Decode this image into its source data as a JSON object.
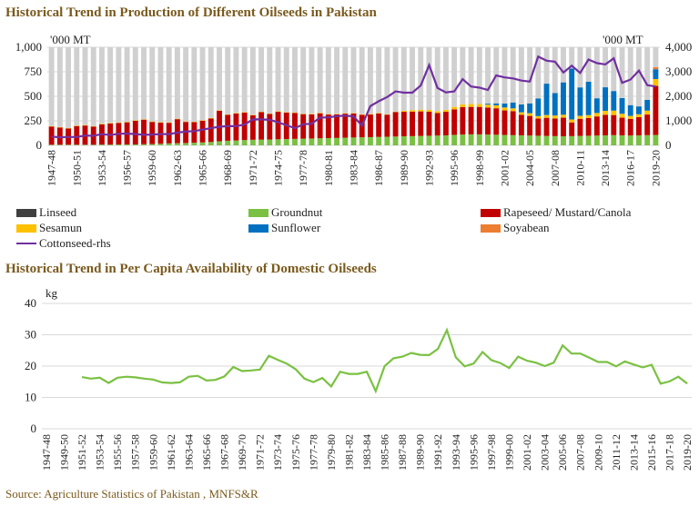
{
  "chart1": {
    "title": "Historical Trend in Production of Different Oilseeds in Pakistan",
    "unit_left": "'000 MT",
    "unit_right": "'000 MT",
    "years": [
      "1947-48",
      "1948-49",
      "1949-50",
      "1950-51",
      "1951-52",
      "1952-53",
      "1953-54",
      "1954-55",
      "1955-56",
      "1956-57",
      "1957-58",
      "1958-59",
      "1959-60",
      "1960-61",
      "1961-62",
      "1962-63",
      "1963-64",
      "1964-65",
      "1965-66",
      "1966-67",
      "1967-68",
      "1968-69",
      "1969-70",
      "1970-71",
      "1971-72",
      "1972-73",
      "1973-74",
      "1974-75",
      "1975-76",
      "1976-77",
      "1977-78",
      "1978-79",
      "1979-80",
      "1980-81",
      "1981-82",
      "1982-83",
      "1983-84",
      "1984-85",
      "1985-86",
      "1986-87",
      "1987-88",
      "1988-89",
      "1989-90",
      "1990-91",
      "1991-92",
      "1992-93",
      "1993-94",
      "1994-95",
      "1995-96",
      "1996-97",
      "1997-98",
      "1998-99",
      "1999-00",
      "2000-01",
      "2001-02",
      "2002-03",
      "2003-04",
      "2004-05",
      "2005-06",
      "2006-07",
      "2007-08",
      "2008-09",
      "2009-10",
      "2010-11",
      "2011-12",
      "2012-13",
      "2013-14",
      "2014-15",
      "2015-16",
      "2016-17",
      "2017-18",
      "2018-19",
      "2019-20"
    ],
    "tick_labels": [
      "1947-48",
      "1950-51",
      "1953-54",
      "1956-57",
      "1959-60",
      "1962-63",
      "1965-66",
      "1968-69",
      "1971-72",
      "1974-75",
      "1977-78",
      "1980-81",
      "1983-84",
      "1986-87",
      "1989-90",
      "1992-93",
      "1995-96",
      "1998-99",
      "2001-02",
      "2004-05",
      "2007-08",
      "2010-11",
      "2013-14",
      "2016-17",
      "2019-20"
    ],
    "y_left_ticks": [
      "0",
      "250",
      "500",
      "750",
      "1,000"
    ],
    "y_right_ticks": [
      "0",
      "1,000",
      "2,000",
      "3,000",
      "4,000"
    ],
    "legend": [
      "Linseed",
      "Groundnut",
      "Rapeseed/ Mustard/Canola",
      "Sesamun",
      "Sunflower",
      "Soyabean",
      "Cottonseed-rhs"
    ]
  },
  "chart2": {
    "title": "Historical Trend in Per Capita Availability of Domestic Oilseeds",
    "unit": "kg",
    "y_ticks": [
      "0",
      "10",
      "20",
      "30",
      "40"
    ],
    "tick_labels": [
      "1947-48",
      "1949-50",
      "1951-52",
      "1953-54",
      "1955-56",
      "1957-58",
      "1959-60",
      "1961-62",
      "1963-64",
      "1965-66",
      "1967-68",
      "1969-70",
      "1971-72",
      "1973-74",
      "1975-76",
      "1977-78",
      "1979-80",
      "1981-82",
      "1983-84",
      "1985-86",
      "1987-88",
      "1989-90",
      "1991-92",
      "1993-94",
      "1995-96",
      "1997-98",
      "1999-00",
      "2001-02",
      "2003-04",
      "2005-06",
      "2007-08",
      "2009-10",
      "2011-12",
      "2013-14",
      "2015-16",
      "2017-18",
      "2019-20"
    ]
  },
  "source": "Source: Agriculture Statistics of Pakistan , MNFS&R",
  "chart_data": [
    {
      "type": "bar",
      "title": "Historical Trend in Production of Different Oilseeds in Pakistan",
      "stacked": true,
      "ylabel": "'000 MT",
      "ylabel_right": "'000 MT",
      "ylim": [
        0,
        1000
      ],
      "ylim_right": [
        0,
        4000
      ],
      "grid": true,
      "legend_position": "bottom",
      "categories": [
        "1947-48",
        "1948-49",
        "1949-50",
        "1950-51",
        "1951-52",
        "1952-53",
        "1953-54",
        "1954-55",
        "1955-56",
        "1956-57",
        "1957-58",
        "1958-59",
        "1959-60",
        "1960-61",
        "1961-62",
        "1962-63",
        "1963-64",
        "1964-65",
        "1965-66",
        "1966-67",
        "1967-68",
        "1968-69",
        "1969-70",
        "1970-71",
        "1971-72",
        "1972-73",
        "1973-74",
        "1974-75",
        "1975-76",
        "1976-77",
        "1977-78",
        "1978-79",
        "1979-80",
        "1980-81",
        "1981-82",
        "1982-83",
        "1983-84",
        "1984-85",
        "1985-86",
        "1986-87",
        "1987-88",
        "1988-89",
        "1989-90",
        "1990-91",
        "1991-92",
        "1992-93",
        "1993-94",
        "1994-95",
        "1995-96",
        "1996-97",
        "1997-98",
        "1998-99",
        "1999-00",
        "2000-01",
        "2001-02",
        "2002-03",
        "2003-04",
        "2004-05",
        "2005-06",
        "2006-07",
        "2007-08",
        "2008-09",
        "2009-10",
        "2010-11",
        "2011-12",
        "2012-13",
        "2013-14",
        "2014-15",
        "2015-16",
        "2016-17",
        "2017-18",
        "2018-19",
        "2019-20"
      ],
      "series": [
        {
          "name": "Linseed",
          "color": "#404040",
          "values": [
            2,
            2,
            2,
            2,
            2,
            2,
            2,
            2,
            2,
            2,
            2,
            2,
            2,
            2,
            2,
            2,
            2,
            2,
            2,
            2,
            2,
            2,
            2,
            2,
            2,
            2,
            2,
            2,
            2,
            2,
            2,
            2,
            2,
            2,
            2,
            2,
            2,
            2,
            2,
            2,
            2,
            2,
            2,
            2,
            2,
            2,
            2,
            2,
            2,
            2,
            2,
            2,
            2,
            2,
            2,
            2,
            2,
            2,
            2,
            2,
            2,
            2,
            2,
            2,
            2,
            2,
            2,
            2,
            2,
            2,
            2,
            2,
            2
          ]
        },
        {
          "name": "Groundnut",
          "color": "#7ac143",
          "values": [
            5,
            5,
            5,
            5,
            5,
            5,
            6,
            6,
            7,
            8,
            8,
            10,
            12,
            14,
            18,
            20,
            22,
            25,
            28,
            32,
            40,
            45,
            48,
            52,
            55,
            56,
            58,
            60,
            62,
            64,
            66,
            68,
            70,
            72,
            74,
            76,
            78,
            80,
            82,
            84,
            86,
            88,
            90,
            92,
            94,
            96,
            98,
            100,
            105,
            108,
            110,
            110,
            108,
            106,
            104,
            102,
            100,
            98,
            96,
            94,
            92,
            90,
            92,
            94,
            96,
            98,
            100,
            102,
            100,
            98,
            100,
            102,
            104
          ]
        },
        {
          "name": "Rapeseed/ Mustard/Canola",
          "color": "#c00000",
          "values": [
            185,
            175,
            165,
            190,
            195,
            185,
            205,
            215,
            220,
            225,
            240,
            250,
            225,
            215,
            210,
            245,
            215,
            210,
            220,
            240,
            310,
            265,
            275,
            280,
            250,
            280,
            260,
            280,
            270,
            265,
            250,
            245,
            255,
            240,
            240,
            245,
            245,
            230,
            230,
            240,
            225,
            250,
            250,
            250,
            250,
            245,
            230,
            240,
            260,
            280,
            280,
            280,
            275,
            270,
            250,
            245,
            210,
            200,
            175,
            185,
            180,
            190,
            140,
            175,
            180,
            195,
            210,
            205,
            180,
            170,
            185,
            210,
            500
          ]
        },
        {
          "name": "Sesamun",
          "color": "#ffc000",
          "values": [
            5,
            5,
            5,
            5,
            5,
            5,
            5,
            5,
            5,
            5,
            5,
            5,
            5,
            5,
            5,
            5,
            5,
            5,
            5,
            5,
            5,
            5,
            5,
            5,
            5,
            5,
            5,
            5,
            5,
            5,
            5,
            5,
            5,
            5,
            5,
            5,
            5,
            5,
            5,
            5,
            5,
            5,
            10,
            15,
            18,
            18,
            18,
            20,
            25,
            28,
            30,
            30,
            30,
            30,
            30,
            28,
            25,
            28,
            25,
            28,
            30,
            30,
            30,
            30,
            30,
            35,
            40,
            45,
            40,
            30,
            30,
            40,
            70
          ]
        },
        {
          "name": "Sunflower",
          "color": "#0070c0",
          "values": [
            0,
            0,
            0,
            0,
            0,
            0,
            0,
            0,
            0,
            0,
            0,
            0,
            0,
            0,
            0,
            0,
            0,
            0,
            0,
            0,
            0,
            0,
            0,
            0,
            0,
            0,
            0,
            0,
            0,
            0,
            0,
            0,
            0,
            0,
            0,
            0,
            0,
            0,
            0,
            0,
            0,
            0,
            0,
            0,
            0,
            0,
            0,
            0,
            0,
            0,
            0,
            0,
            10,
            20,
            40,
            60,
            80,
            100,
            180,
            320,
            230,
            330,
            520,
            290,
            340,
            150,
            240,
            200,
            160,
            110,
            80,
            110,
            100
          ]
        },
        {
          "name": "Soyabean",
          "color": "#ed7d31",
          "values": [
            0,
            0,
            0,
            0,
            0,
            0,
            0,
            0,
            0,
            0,
            0,
            0,
            0,
            0,
            0,
            0,
            0,
            0,
            0,
            0,
            0,
            0,
            0,
            0,
            0,
            0,
            0,
            0,
            0,
            0,
            0,
            0,
            0,
            0,
            0,
            0,
            0,
            0,
            0,
            0,
            0,
            0,
            0,
            0,
            0,
            0,
            0,
            0,
            0,
            0,
            0,
            0,
            0,
            0,
            0,
            0,
            0,
            0,
            0,
            0,
            0,
            0,
            0,
            0,
            0,
            0,
            0,
            0,
            0,
            0,
            0,
            0,
            20
          ]
        },
        {
          "name": "Cottonseed-rhs",
          "color": "#7030a0",
          "axis": "right",
          "type": "line",
          "values": [
            360,
            330,
            340,
            340,
            400,
            390,
            460,
            420,
            470,
            480,
            460,
            430,
            440,
            460,
            460,
            520,
            560,
            580,
            640,
            700,
            760,
            780,
            780,
            850,
            1060,
            1060,
            1040,
            940,
            820,
            700,
            860,
            880,
            1130,
            1140,
            1190,
            1210,
            1180,
            800,
            1600,
            1800,
            1970,
            2200,
            2150,
            2150,
            2440,
            3270,
            2340,
            2160,
            2200,
            2700,
            2400,
            2350,
            2260,
            2850,
            2770,
            2730,
            2640,
            2600,
            3620,
            3450,
            3410,
            2970,
            3250,
            2950,
            3500,
            3350,
            3300,
            3550,
            2550,
            2680,
            3050,
            2450,
            2400
          ]
        }
      ]
    },
    {
      "type": "line",
      "title": "Historical Trend in Per Capita Availability of Domestic Oilseeds",
      "ylabel": "kg",
      "ylim": [
        0,
        40
      ],
      "grid": true,
      "categories": [
        "1947-48",
        "1948-49",
        "1949-50",
        "1950-51",
        "1951-52",
        "1952-53",
        "1953-54",
        "1954-55",
        "1955-56",
        "1956-57",
        "1957-58",
        "1958-59",
        "1959-60",
        "1960-61",
        "1961-62",
        "1962-63",
        "1963-64",
        "1964-65",
        "1965-66",
        "1966-67",
        "1967-68",
        "1968-69",
        "1969-70",
        "1970-71",
        "1971-72",
        "1972-73",
        "1973-74",
        "1974-75",
        "1975-76",
        "1976-77",
        "1977-78",
        "1978-79",
        "1979-80",
        "1980-81",
        "1981-82",
        "1982-83",
        "1983-84",
        "1984-85",
        "1985-86",
        "1986-87",
        "1987-88",
        "1988-89",
        "1989-90",
        "1990-91",
        "1991-92",
        "1992-93",
        "1993-94",
        "1994-95",
        "1995-96",
        "1996-97",
        "1997-98",
        "1998-99",
        "1999-00",
        "2000-01",
        "2001-02",
        "2002-03",
        "2003-04",
        "2004-05",
        "2005-06",
        "2006-07",
        "2007-08",
        "2008-09",
        "2009-10",
        "2010-11",
        "2011-12",
        "2012-13",
        "2013-14",
        "2014-15",
        "2015-16",
        "2016-17",
        "2017-18",
        "2018-19",
        "2019-20"
      ],
      "series": [
        {
          "color": "#7ac143",
          "values": [
            null,
            null,
            null,
            null,
            16.5,
            16.0,
            16.3,
            14.6,
            16.3,
            16.6,
            16.4,
            16.0,
            15.7,
            14.8,
            14.6,
            14.8,
            16.6,
            16.9,
            15.4,
            15.6,
            16.7,
            19.7,
            18.4,
            18.6,
            18.9,
            23.3,
            22.0,
            20.8,
            19.0,
            16.0,
            14.9,
            16.2,
            13.5,
            18.2,
            17.5,
            17.5,
            18.2,
            12.0,
            20.0,
            22.5,
            23.0,
            24.2,
            23.6,
            23.5,
            25.5,
            31.5,
            22.8,
            19.9,
            20.8,
            24.5,
            21.9,
            21.0,
            19.4,
            23.0,
            21.7,
            21.1,
            20.0,
            21.1,
            26.6,
            24.0,
            24.0,
            22.7,
            21.3,
            21.3,
            19.9,
            21.5,
            20.5,
            19.6,
            20.4,
            14.4,
            15.1,
            16.6,
            14.4
          ]
        }
      ]
    }
  ]
}
